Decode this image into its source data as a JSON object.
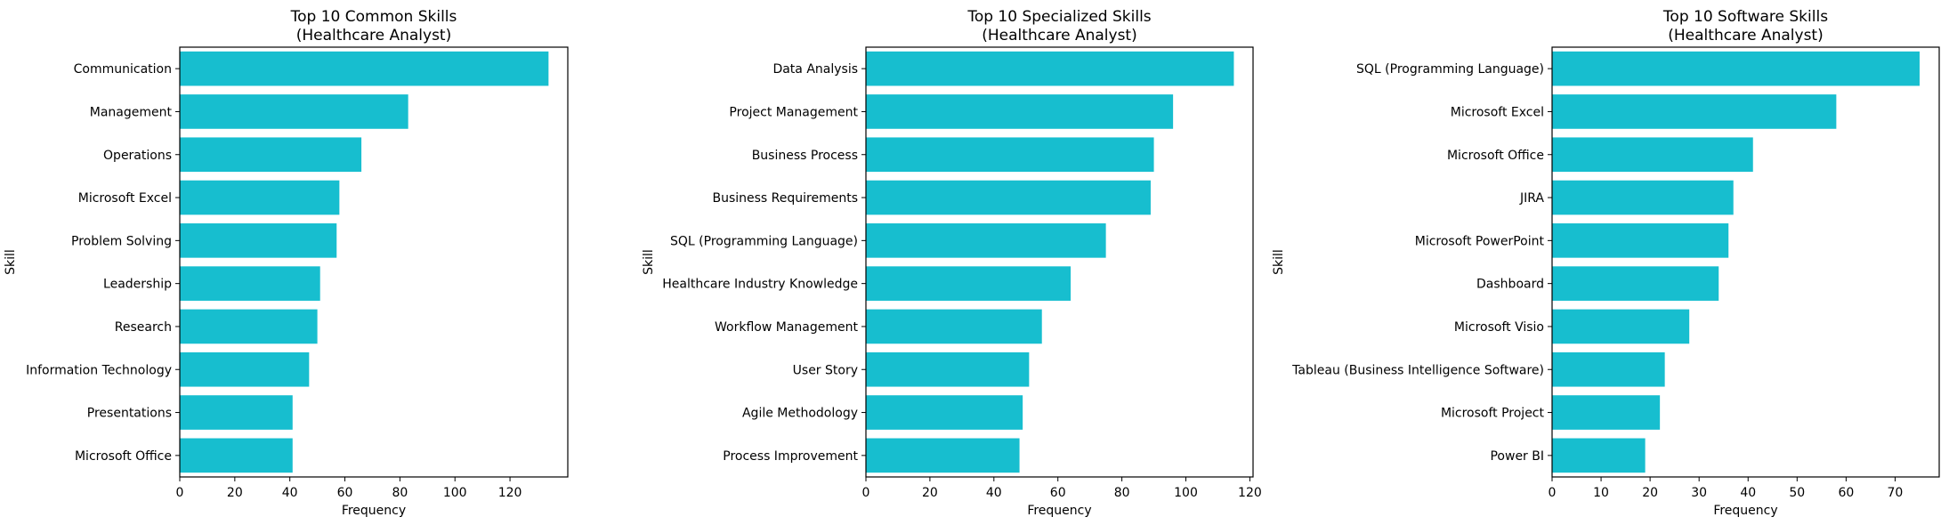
{
  "chart_data": [
    {
      "type": "bar",
      "orientation": "horizontal",
      "title": "Top 10 Common Skills",
      "subtitle": "(Healthcare Analyst)",
      "xlabel": "Frequency",
      "ylabel": "Skill",
      "xlim": [
        0,
        141
      ],
      "xticks": [
        0,
        20,
        40,
        60,
        80,
        100,
        120
      ],
      "bar_color": "#17becf",
      "categories": [
        "Communication",
        "Management",
        "Operations",
        "Microsoft Excel",
        "Problem Solving",
        "Leadership",
        "Research",
        "Information Technology",
        "Presentations",
        "Microsoft Office"
      ],
      "values": [
        134,
        83,
        66,
        58,
        57,
        51,
        50,
        47,
        41,
        41
      ]
    },
    {
      "type": "bar",
      "orientation": "horizontal",
      "title": "Top 10 Specialized Skills",
      "subtitle": "(Healthcare Analyst)",
      "xlabel": "Frequency",
      "ylabel": "Skill",
      "xlim": [
        0,
        121
      ],
      "xticks": [
        0,
        20,
        40,
        60,
        80,
        100,
        120
      ],
      "bar_color": "#17becf",
      "categories": [
        "Data Analysis",
        "Project Management",
        "Business Process",
        "Business Requirements",
        "SQL (Programming Language)",
        "Healthcare Industry Knowledge",
        "Workflow Management",
        "User Story",
        "Agile Methodology",
        "Process Improvement"
      ],
      "values": [
        115,
        96,
        90,
        89,
        75,
        64,
        55,
        51,
        49,
        48
      ]
    },
    {
      "type": "bar",
      "orientation": "horizontal",
      "title": "Top 10 Software Skills",
      "subtitle": "(Healthcare Analyst)",
      "xlabel": "Frequency",
      "ylabel": "Skill",
      "xlim": [
        0,
        79
      ],
      "xticks": [
        0,
        10,
        20,
        30,
        40,
        50,
        60,
        70
      ],
      "bar_color": "#17becf",
      "categories": [
        "SQL (Programming Language)",
        "Microsoft Excel",
        "Microsoft Office",
        "JIRA",
        "Microsoft PowerPoint",
        "Dashboard",
        "Microsoft Visio",
        "Tableau (Business Intelligence Software)",
        "Microsoft Project",
        "Power BI"
      ],
      "values": [
        75,
        58,
        41,
        37,
        36,
        34,
        28,
        23,
        22,
        19
      ]
    }
  ]
}
